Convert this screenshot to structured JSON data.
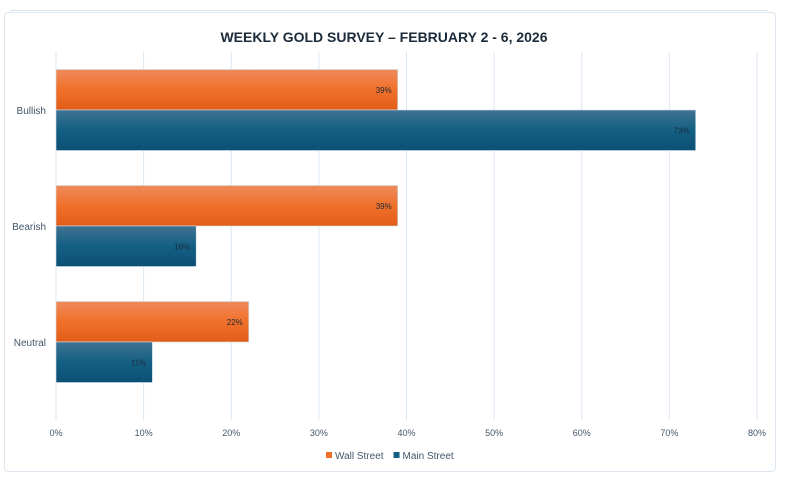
{
  "chart_data": {
    "type": "bar",
    "orientation": "horizontal",
    "title": "WEEKLY GOLD SURVEY – FEBRUARY 2 - 6, 2026",
    "categories": [
      "Bullish",
      "Bearish",
      "Neutral"
    ],
    "series": [
      {
        "name": "Wall Street",
        "values": [
          39,
          39,
          22
        ],
        "labels": [
          "39%",
          "39%",
          "22%"
        ],
        "color": "#f0702a"
      },
      {
        "name": "Main Street",
        "values": [
          73,
          16,
          11
        ],
        "labels": [
          "73%",
          "16%",
          "11%"
        ],
        "color": "#145f84"
      }
    ],
    "xlim": [
      0,
      80
    ],
    "xticks": [
      "0%",
      "10%",
      "20%",
      "30%",
      "40%",
      "50%",
      "60%",
      "70%",
      "80%"
    ],
    "grid": true,
    "legend": "bottom",
    "title_color": "#1c2b3a"
  }
}
